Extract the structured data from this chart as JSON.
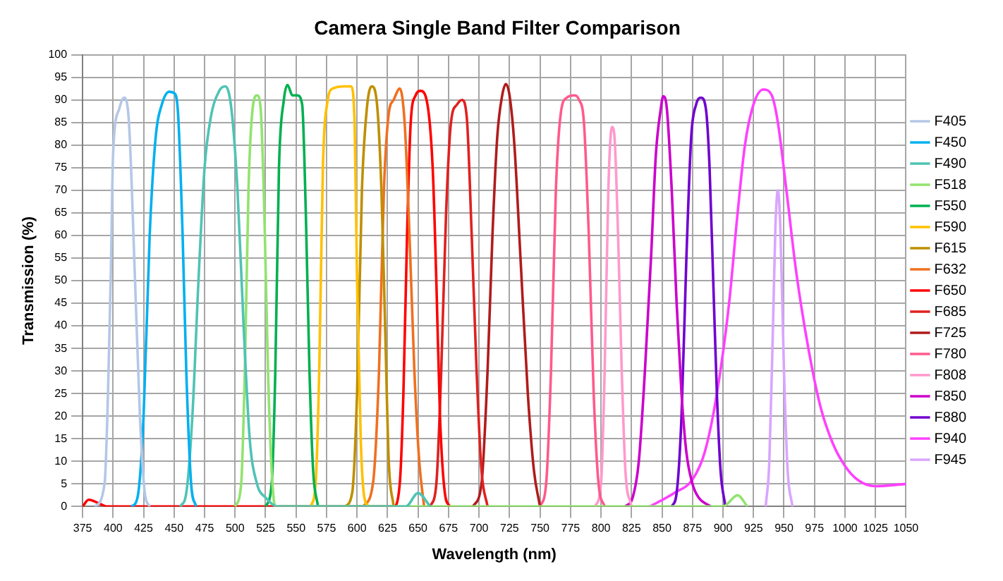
{
  "chart_data": {
    "type": "line",
    "title": "Camera Single Band Filter Comparison",
    "xlabel": "Wavelength (nm)",
    "ylabel": "Transmission (%)",
    "xlim": [
      375,
      1050
    ],
    "xticks": [
      375,
      400,
      425,
      450,
      475,
      500,
      525,
      550,
      575,
      600,
      625,
      650,
      675,
      700,
      725,
      750,
      775,
      800,
      825,
      850,
      875,
      900,
      925,
      950,
      975,
      1000,
      1025,
      1050
    ],
    "ylim": [
      0,
      100
    ],
    "yticks": [
      0,
      5,
      10,
      15,
      20,
      25,
      30,
      35,
      40,
      45,
      50,
      55,
      60,
      65,
      70,
      75,
      80,
      85,
      90,
      95,
      100
    ],
    "grid": true,
    "legend": "right",
    "marker": "none",
    "line_style": "solid",
    "series": [
      {
        "name": "F405",
        "color": "#b4c7e7",
        "x": [
          385,
          393,
          398,
          400,
          405,
          409,
          413,
          418,
          422,
          426,
          430
        ],
        "values": [
          0,
          5,
          50,
          78,
          88,
          90.5,
          85,
          50,
          20,
          3,
          0
        ]
      },
      {
        "name": "F450",
        "color": "#00b0f0",
        "x": [
          415,
          420,
          425,
          430,
          435,
          440,
          446,
          450,
          453,
          457,
          460,
          464,
          468
        ],
        "values": [
          0,
          2,
          20,
          60,
          82,
          89,
          91.8,
          91.5,
          88,
          60,
          30,
          5,
          0
        ]
      },
      {
        "name": "F490",
        "color": "#4fc3b5",
        "x": [
          455,
          460,
          465,
          470,
          475,
          480,
          487,
          492,
          497,
          502,
          507,
          512,
          518,
          525,
          535,
          640,
          650,
          660
        ],
        "values": [
          0,
          3,
          20,
          50,
          75,
          86,
          92,
          93,
          88,
          70,
          40,
          15,
          5,
          2,
          0,
          0,
          3,
          0
        ]
      },
      {
        "name": "F518",
        "color": "#92e36f",
        "x": [
          500,
          505,
          508,
          511,
          514,
          518,
          521,
          524,
          527,
          530,
          533,
          900,
          912,
          920
        ],
        "values": [
          0,
          5,
          30,
          70,
          87,
          91,
          88,
          65,
          30,
          8,
          0,
          0,
          2.5,
          0
        ]
      },
      {
        "name": "F550",
        "color": "#00b050",
        "x": [
          525,
          530,
          533,
          536,
          540,
          543,
          547,
          551,
          555,
          558,
          561,
          564,
          568
        ],
        "values": [
          0,
          5,
          30,
          75,
          90,
          93.3,
          91,
          91,
          89,
          65,
          30,
          8,
          0
        ]
      },
      {
        "name": "F590",
        "color": "#ffc000",
        "x": [
          562,
          566,
          569,
          572,
          576,
          580,
          590,
          595,
          598,
          600,
          603,
          606,
          610
        ],
        "values": [
          0,
          5,
          30,
          75,
          90,
          92.5,
          93,
          93,
          85,
          50,
          15,
          2,
          0
        ]
      },
      {
        "name": "F615",
        "color": "#bf8f00",
        "x": [
          590,
          596,
          600,
          604,
          608,
          612,
          616,
          620,
          623,
          626,
          630
        ],
        "values": [
          0,
          3,
          25,
          70,
          88,
          93,
          90,
          70,
          40,
          10,
          0
        ]
      },
      {
        "name": "F632",
        "color": "#f07020",
        "x": [
          605,
          613,
          618,
          622,
          626,
          630,
          635,
          639,
          643,
          647,
          651,
          655
        ],
        "values": [
          0,
          5,
          30,
          70,
          87,
          90,
          92.5,
          85,
          60,
          30,
          10,
          0
        ]
      },
      {
        "name": "F650",
        "color": "#ff0000",
        "x": [
          375,
          380,
          390,
          395,
          630,
          635,
          638,
          641,
          644,
          648,
          652,
          657,
          662,
          665,
          668,
          672,
          676
        ],
        "values": [
          0,
          1.5,
          0.5,
          0,
          0,
          5,
          25,
          60,
          85,
          91,
          92,
          90,
          75,
          50,
          20,
          3,
          0
        ]
      },
      {
        "name": "F685",
        "color": "#e02020",
        "x": [
          660,
          665,
          669,
          673,
          677,
          682,
          686,
          690,
          694,
          698,
          702,
          707
        ],
        "values": [
          0,
          5,
          30,
          65,
          85,
          89,
          90,
          86,
          60,
          30,
          8,
          0
        ]
      },
      {
        "name": "F725",
        "color": "#b01c1c",
        "x": [
          695,
          702,
          707,
          711,
          715,
          719,
          722,
          725,
          729,
          734,
          740,
          745,
          750
        ],
        "values": [
          0,
          5,
          30,
          60,
          82,
          91,
          93.5,
          91,
          80,
          55,
          25,
          8,
          0
        ]
      },
      {
        "name": "F780",
        "color": "#ff5a8c",
        "x": [
          750,
          755,
          759,
          763,
          767,
          772,
          778,
          782,
          786,
          790,
          794,
          798,
          803
        ],
        "values": [
          0,
          5,
          30,
          70,
          87,
          90.5,
          91,
          90,
          85,
          60,
          25,
          5,
          0
        ]
      },
      {
        "name": "F808",
        "color": "#ff99cc",
        "x": [
          795,
          800,
          803,
          806,
          809,
          811,
          814,
          817,
          820,
          825
        ],
        "values": [
          0,
          5,
          30,
          70,
          84,
          82,
          60,
          30,
          8,
          0
        ]
      },
      {
        "name": "F850",
        "color": "#cc00cc",
        "x": [
          820,
          826,
          831,
          836,
          841,
          845,
          849,
          851,
          854,
          858,
          862,
          866,
          870,
          875,
          880,
          890
        ],
        "values": [
          0,
          2,
          10,
          30,
          55,
          78,
          88,
          90.8,
          88,
          70,
          45,
          25,
          12,
          5,
          2,
          0
        ]
      },
      {
        "name": "F880",
        "color": "#7000d0",
        "x": [
          858,
          862,
          866,
          870,
          874,
          878,
          882,
          886,
          889,
          892,
          895,
          898,
          902
        ],
        "values": [
          0,
          3,
          20,
          55,
          82,
          89,
          90.5,
          88,
          75,
          50,
          25,
          8,
          0
        ]
      },
      {
        "name": "F940",
        "color": "#ff40ff",
        "x": [
          840,
          860,
          875,
          885,
          895,
          905,
          912,
          918,
          925,
          933,
          940,
          945,
          952,
          960,
          970,
          980,
          990,
          1000,
          1010,
          1025,
          1050
        ],
        "values": [
          0,
          3,
          6,
          12,
          25,
          45,
          65,
          80,
          89,
          92.3,
          91,
          85,
          70,
          52,
          35,
          22,
          14,
          9,
          6,
          4.5,
          5
        ]
      },
      {
        "name": "F945",
        "color": "#d9a5ff",
        "x": [
          935,
          938,
          941,
          943,
          945,
          947,
          950,
          953,
          957
        ],
        "values": [
          0,
          10,
          40,
          62,
          70,
          62,
          30,
          8,
          0
        ]
      }
    ]
  }
}
